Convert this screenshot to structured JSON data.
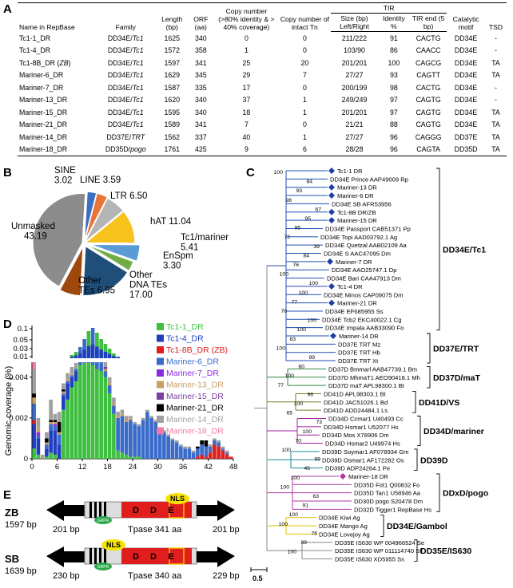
{
  "panels": {
    "a": "A",
    "b": "B",
    "c": "C",
    "d": "D",
    "e": "E"
  },
  "table": {
    "headers": {
      "name": "Name in RepBase",
      "family": "Family",
      "length": "Length (bp)",
      "orf": "ORF (aa)",
      "copy80": "Copy number (>80% identity & > 40% coverage)",
      "intact": "Copy number of intact Tn",
      "tir": "TIR",
      "size": "Size (bp) Left/Right",
      "identity": "Identity %",
      "tirend": "TIR end (5 bp)",
      "motif": "Catalytic motif",
      "tsd": "TSD"
    },
    "rows": [
      {
        "name": "Tc1-1_DR",
        "family": "DD34E/Tc1",
        "length": "1625",
        "orf": "340",
        "copy": "0",
        "intact": "0",
        "size": "211/222",
        "identity": "91",
        "end": "CACTG",
        "motif": "DD34E",
        "tsd": "-"
      },
      {
        "name": "Tc1-4_DR",
        "family": "DD34E/Tc1",
        "length": "1572",
        "orf": "358",
        "copy": "1",
        "intact": "0",
        "size": "103/90",
        "identity": "86",
        "end": "CAACC",
        "motif": "DD34E",
        "tsd": "-"
      },
      {
        "name": "Tc1-8B_DR (ZB)",
        "family": "DD34E/Tc1",
        "length": "1597",
        "orf": "341",
        "copy": "25",
        "intact": "20",
        "size": "201/201",
        "identity": "100",
        "end": "CAGCG",
        "motif": "DD34E",
        "tsd": "TA"
      },
      {
        "name": "Mariner-6_DR",
        "family": "DD34E/Tc1",
        "length": "1629",
        "orf": "345",
        "copy": "29",
        "intact": "7",
        "size": "27/27",
        "identity": "93",
        "end": "CAGTT",
        "motif": "DD34E",
        "tsd": "TA"
      },
      {
        "name": "Mariner-7_DR",
        "family": "DD34E/Tc1",
        "length": "1587",
        "orf": "335",
        "copy": "17",
        "intact": "0",
        "size": "200/199",
        "identity": "98",
        "end": "CACTG",
        "motif": "DD34E",
        "tsd": "-"
      },
      {
        "name": "Mariner-13_DR",
        "family": "DD34E/Tc1",
        "length": "1620",
        "orf": "340",
        "copy": "37",
        "intact": "1",
        "size": "249/249",
        "identity": "97",
        "end": "CAGTG",
        "motif": "DD34E",
        "tsd": "-"
      },
      {
        "name": "Mariner-15_DR",
        "family": "DD34E/Tc1",
        "length": "1595",
        "orf": "340",
        "copy": "18",
        "intact": "1",
        "size": "201/201",
        "identity": "97",
        "end": "CAGTG",
        "motif": "DD34E",
        "tsd": "TA"
      },
      {
        "name": "Mariner-21_DR",
        "family": "DD34E/Tc1",
        "length": "1589",
        "orf": "341",
        "copy": "7",
        "intact": "0",
        "size": "21/21",
        "identity": "88",
        "end": "CAGTG",
        "motif": "DD34E",
        "tsd": "TA"
      },
      {
        "name": "Mariner-14_DR",
        "family": "DD37E/TRT",
        "length": "1562",
        "orf": "337",
        "copy": "40",
        "intact": "1",
        "size": "27/27",
        "identity": "96",
        "end": "CAGGG",
        "motif": "DD37E",
        "tsd": "TA"
      },
      {
        "name": "Mariner-18_DR",
        "family": "DD35D/pogo",
        "length": "1761",
        "orf": "425",
        "copy": "9",
        "intact": "6",
        "size": "28/28",
        "identity": "96",
        "end": "CAGTA",
        "motif": "DD35D",
        "tsd": "TA"
      }
    ]
  },
  "chart_data": [
    {
      "type": "pie",
      "labels": [
        "SINE",
        "LINE",
        "LTR",
        "hAT",
        "Tc1/mariner",
        "EnSpm",
        "Other DNA TEs",
        "Other TEs",
        "Unmasked"
      ],
      "values": [
        3.02,
        3.59,
        6.5,
        11.04,
        5.41,
        3.3,
        17.0,
        6.95,
        43.19
      ],
      "label_text": [
        "SINE\n3.02",
        "LINE 3.59",
        "LTR 6.50",
        "hAT 11.04",
        "Tc1/mariner\n5.41",
        "EnSpm\n3.30",
        "Other\nDNA TEs\n17.00",
        "Other\nTEs 6.95",
        "Unmasked\n43.19"
      ],
      "colors": [
        "#3b6fc4",
        "#e8743b",
        "#b5b5b5",
        "#f7c21b",
        "#5b9bd5",
        "#70ad47",
        "#1f4e79",
        "#9e480e",
        "#8c8c8c"
      ]
    },
    {
      "type": "bar",
      "ylabel": "Genomic coverage (%)",
      "x_ticks": [
        "0",
        "6",
        "12",
        "18",
        "24",
        "30",
        "36",
        "42",
        "48"
      ],
      "upper_y_ticks": [
        "0.1",
        "0.05",
        "0.03",
        "0.01"
      ],
      "lower_y_ticks": [
        "0.004",
        "0.002",
        "0"
      ],
      "series": [
        {
          "name": "Tc1-1_DR",
          "color": "#3fbf3f"
        },
        {
          "name": "Tc1-4_DR",
          "color": "#1f3fbf"
        },
        {
          "name": "Tc1-8B_DR (ZB)",
          "color": "#e01e1e"
        },
        {
          "name": "Mariner-6_DR",
          "color": "#3a6bc9"
        },
        {
          "name": "Mariner-7_DR",
          "color": "#8a2be2"
        },
        {
          "name": "Mariner-13_DR",
          "color": "#c8a060"
        },
        {
          "name": "Mariner-15_DR",
          "color": "#7a3fa0"
        },
        {
          "name": "Mariner-21_DR",
          "color": "#000000"
        },
        {
          "name": "Mariner-14_DR",
          "color": "#a0a0a0"
        },
        {
          "name": "Mariner-18_DR",
          "color": "#f07aa8"
        }
      ],
      "x": [
        1,
        2,
        3,
        4,
        5,
        6,
        7,
        8,
        9,
        10,
        11,
        12,
        13,
        14,
        15,
        16,
        17,
        18,
        19,
        20,
        21,
        22,
        23,
        24,
        25,
        26,
        27,
        28,
        29,
        30,
        31,
        32,
        33,
        34,
        35,
        36,
        37,
        38,
        39,
        40,
        41,
        42,
        43,
        44,
        45,
        46,
        47,
        48
      ],
      "stack_values": [
        [
          0.0005,
          0.0012,
          0.0002,
          0.0008,
          0,
          0.0003,
          0,
          0.0002,
          0.0012,
          0.0006
        ],
        [
          0.0002,
          0.0008,
          0,
          0.0001,
          0.0002,
          0.0002,
          0,
          0,
          0.0005,
          0
        ],
        [
          0,
          0,
          0,
          0,
          0,
          0,
          0,
          0,
          0.0002,
          0
        ],
        [
          0.0001,
          0.0004,
          0,
          0.0002,
          0,
          0.0001,
          0,
          0.0002,
          0.0003,
          0
        ],
        [
          0.0003,
          0.0011,
          0,
          0.0003,
          0,
          0.0001,
          0,
          0.0001,
          0.001,
          0
        ],
        [
          0.0002,
          0.0012,
          0,
          0.0002,
          0.0001,
          0.0001,
          0,
          0.0001,
          0.0003,
          0
        ],
        [
          0,
          0.0007,
          0,
          0.0005,
          0,
          0.0001,
          0,
          0.0005,
          0.0005,
          0
        ],
        [
          0.0024,
          0.0007,
          0,
          0.0001,
          0,
          0.0001,
          0,
          0.0001,
          0.0003,
          0
        ],
        [
          0.0029,
          0.0008,
          0,
          0.0001,
          0,
          0.0001,
          0,
          0,
          0.0003,
          0
        ],
        [
          0.0035,
          0.0005,
          0,
          0.0001,
          0,
          0.0001,
          0,
          0,
          0.0003,
          0
        ],
        [
          0.0038,
          0.0005,
          0,
          0.0001,
          0,
          0,
          0,
          0,
          0.0003,
          0
        ],
        [
          0.0046,
          0,
          0,
          0.0003,
          0.0004,
          0.0003,
          0.0003,
          0,
          0.0002,
          0
        ],
        [
          0.0047,
          0,
          0,
          0.0008,
          0.0004,
          0.0003,
          0.0005,
          0,
          0.0004,
          0
        ],
        [
          0.0047,
          0,
          0,
          0.0015,
          0.0006,
          0.0003,
          0.0007,
          0,
          0.0003,
          0
        ],
        [
          0.0046,
          0,
          0,
          0.0019,
          0.0006,
          0.0003,
          0.0008,
          0,
          0.0003,
          0
        ],
        [
          0.0044,
          0,
          0,
          0.0012,
          0.0004,
          0.0002,
          0.0007,
          0,
          0.0003,
          0
        ],
        [
          0.0043,
          0,
          0,
          0.0011,
          0.0002,
          0.0002,
          0.0005,
          0,
          0.0003,
          0
        ],
        [
          0.004,
          0,
          0,
          0.0003,
          0,
          0.0001,
          0.0001,
          0,
          0.0003,
          0
        ],
        [
          0.0032,
          0,
          0,
          0.0004,
          0,
          0.0001,
          0,
          0,
          0.0003,
          0
        ],
        [
          0.0022,
          0,
          0,
          0.0004,
          0,
          0.0001,
          0,
          0,
          0.0003,
          0
        ],
        [
          0.0004,
          0,
          0,
          0.0016,
          0,
          0.0001,
          0,
          0,
          0.0002,
          0
        ],
        [
          0.0003,
          0,
          0,
          0.0018,
          0,
          0.0001,
          0,
          0,
          0.0002,
          0
        ],
        [
          0.0002,
          0,
          0,
          0.0016,
          0,
          0.0001,
          0,
          0,
          0.0002,
          0
        ],
        [
          0.0001,
          0,
          0,
          0.0018,
          0,
          0.0001,
          0,
          0,
          0.0001,
          0
        ],
        [
          0.0001,
          0,
          0,
          0.0016,
          0,
          0,
          0,
          0,
          0.0001,
          0
        ],
        [
          0.0001,
          0,
          0,
          0.0015,
          0,
          0,
          0,
          0,
          0.0001,
          0
        ],
        [
          0,
          0,
          0,
          0.0019,
          0,
          0,
          0,
          0,
          0.0001,
          0
        ],
        [
          0,
          0,
          0,
          0.0023,
          0,
          0,
          0,
          0,
          0.0001,
          0
        ],
        [
          0,
          0,
          0,
          0.002,
          0,
          0,
          0,
          0,
          0.0001,
          0
        ],
        [
          0,
          0,
          0,
          0.0018,
          0,
          0,
          0,
          0,
          0.0001,
          0
        ],
        [
          0,
          0,
          0,
          0.0014,
          0,
          0,
          0,
          0,
          0.0001,
          0
        ],
        [
          0,
          0,
          0,
          0.0013,
          0,
          0,
          0,
          0,
          0.0001,
          0
        ],
        [
          0,
          0,
          0,
          0.0011,
          0,
          0,
          0,
          0,
          0.0001,
          0
        ],
        [
          0,
          0,
          0,
          0.0009,
          0,
          0,
          0,
          0,
          0.0001,
          0
        ],
        [
          0,
          0,
          0,
          0.0008,
          0,
          0,
          0,
          0,
          0.0001,
          0
        ],
        [
          0,
          0,
          0,
          0.0006,
          0,
          0,
          0,
          0,
          0.0001,
          0
        ],
        [
          0,
          0,
          0,
          0.0005,
          0,
          0,
          0,
          0,
          0.0001,
          0
        ],
        [
          0,
          0,
          0,
          0.0005,
          0,
          0,
          0,
          0,
          0.0001,
          0
        ],
        [
          0,
          0,
          0,
          0.0003,
          0,
          0,
          0,
          0,
          0.0001,
          0
        ],
        [
          0,
          0,
          0.0001,
          0.0004,
          0,
          0,
          0,
          0.0001,
          0,
          0
        ],
        [
          0,
          0,
          0.0002,
          0.0005,
          0,
          0,
          0,
          0.0002,
          0,
          0
        ],
        [
          0,
          0,
          0.0001,
          0.0005,
          0,
          0,
          0,
          0.0003,
          0,
          0
        ],
        [
          0,
          0,
          0.0003,
          0.0003,
          0,
          0,
          0,
          0,
          0.0001,
          0
        ],
        [
          0,
          0,
          0.0007,
          0.0002,
          0,
          0,
          0,
          0,
          0.0001,
          0
        ],
        [
          0,
          0,
          0.0006,
          0.0002,
          0,
          0,
          0,
          0,
          0.0001,
          0
        ],
        [
          0,
          0,
          0.0004,
          0.0001,
          0,
          0,
          0,
          0,
          0.0001,
          0
        ],
        [
          0,
          0,
          0.0002,
          0.0001,
          0,
          0,
          0,
          0,
          0.0001,
          0
        ],
        [
          0,
          0,
          0.0001,
          0,
          0,
          0,
          0,
          0,
          0,
          0
        ]
      ]
    }
  ],
  "tree": {
    "clades": [
      "DD34E/Tc1",
      "DD37E/TRT",
      "DD37D/maT",
      "DD41D/VS",
      "DD34D/mariner",
      "DD39D",
      "DDxD/pogo",
      "DD34E/Gambol",
      "DD35E/IS630"
    ],
    "scale": "0.5",
    "leaves": [
      {
        "t": "Tc1-1 DR",
        "c": "#1f3fa0",
        "d": true
      },
      {
        "t": "DD34E Prince AAP49009 Rp",
        "c": "#000"
      },
      {
        "t": "Mariner-13 DR",
        "c": "#1f3fa0",
        "d": true
      },
      {
        "t": "Mariner-6 DR",
        "c": "#1f3fa0",
        "d": true
      },
      {
        "t": "DD34E SB AFR53956",
        "c": "#000"
      },
      {
        "t": "Tc1-8B DR/ZB",
        "c": "#1f3fa0",
        "d": true
      },
      {
        "t": "Mariner-15 DR",
        "c": "#1f3fa0",
        "d": true
      },
      {
        "t": "DD34E Passport CAB51371 Pp",
        "c": "#000"
      },
      {
        "t": "DD34E Topi AAD03792.1 Ag",
        "c": "#000"
      },
      {
        "t": "DD34E Quetzal AAB02109 Aa",
        "c": "#000"
      },
      {
        "t": "DD34E S AAC47095 Dm",
        "c": "#000"
      },
      {
        "t": "Mariner-7 DR",
        "c": "#1f3fa0",
        "d": true
      },
      {
        "t": "DD34E AAO25747.1 Dp",
        "c": "#000"
      },
      {
        "t": "DD34E Bari CAA47913 Dm",
        "c": "#000"
      },
      {
        "t": "Tc1-4 DR",
        "c": "#1f3fa0",
        "d": true
      },
      {
        "t": "DD34E Minos CAP09075 Dm",
        "c": "#000"
      },
      {
        "t": "Mariner-21 DR",
        "c": "#1f3fa0",
        "d": true
      },
      {
        "t": "DD34E EF685955 Ss",
        "c": "#000"
      },
      {
        "t": "DD34E Tcb2 EKC40022.1 Cg",
        "c": "#000"
      },
      {
        "t": "DD34E Impala AAB33090 Fo",
        "c": "#000"
      },
      {
        "t": "Mariner-14 DR",
        "c": "#1f3fa0",
        "d": true
      },
      {
        "t": "DD37E TRT Mz",
        "c": "#000"
      },
      {
        "t": "DD37E TRT Hb",
        "c": "#000"
      },
      {
        "t": "DD37E TRT Xt",
        "c": "#000"
      },
      {
        "t": "DD37D Bmmarl AAB47739.1 Bm",
        "c": "#000"
      },
      {
        "t": "DD37D MhmaT1 AEO90418.1 Mh",
        "c": "#000"
      },
      {
        "t": "DD37D maT APL98300.1 Bt",
        "c": "#000"
      },
      {
        "t": "DD41D APL98303.1 Bt",
        "c": "#000"
      },
      {
        "t": "DD41D JAC51026.1 Bd",
        "c": "#000"
      },
      {
        "t": "DD41D ADD24484.1 Ls",
        "c": "#000"
      },
      {
        "t": "DD34D Ccmar1 U40493 Cc",
        "c": "#000"
      },
      {
        "t": "DD34D Hsmar1 U52077 Hs",
        "c": "#000"
      },
      {
        "t": "DD34D Mos X78906 Dm",
        "c": "#000"
      },
      {
        "t": "DD34D Hsmar2 U49974 Hs",
        "c": "#000"
      },
      {
        "t": "DD39D Soymar1 AF078934 Gm",
        "c": "#000"
      },
      {
        "t": "DD39D Osmar1 AF172282 Os",
        "c": "#000"
      },
      {
        "t": "DD39D ADP24264.1 Pe",
        "c": "#000"
      },
      {
        "t": "Mariner-18 DR",
        "c": "#b03aa0",
        "d": true
      },
      {
        "t": "DD35D Fot1 Q00832 Fo",
        "c": "#000"
      },
      {
        "t": "DD35D Tan1 U58946 Aa",
        "c": "#000"
      },
      {
        "t": "DD30D pogo S20478 Dm",
        "c": "#000"
      },
      {
        "t": "DD32D Tigger1 RepBase Hs",
        "c": "#000"
      },
      {
        "t": "DD34E Kiwi Ag",
        "c": "#000"
      },
      {
        "t": "DD34E Mango Ag",
        "c": "#000"
      },
      {
        "t": "DD34E Lovejoy Ag",
        "c": "#000"
      },
      {
        "t": "DD35E IS630 WP 004966524 Se",
        "c": "#000"
      },
      {
        "t": "DD35E IS630 WP 011114740 Sf",
        "c": "#000"
      },
      {
        "t": "DD35E IS630 XD5955 Ss",
        "c": "#000"
      }
    ],
    "support": [
      "100",
      "84",
      "93",
      "98",
      "67",
      "95",
      "95",
      "72",
      "39",
      "84",
      "76",
      "100",
      "100",
      "100",
      "77",
      "76",
      "100",
      "100",
      "83",
      "100",
      "99",
      "60",
      "100",
      "77",
      "96",
      "100",
      "65",
      "73",
      "100",
      "70",
      "100",
      "99",
      "45",
      "100",
      "100",
      "63",
      "91",
      "100",
      "100",
      "76",
      "99",
      "100"
    ]
  },
  "schematic": {
    "zb": {
      "name": "ZB",
      "length": "1597 bp",
      "left": "201 bp",
      "tpase": "Tpase 341 aa",
      "right": "201 bp",
      "nls": "NLS",
      "grpr": "GRPR",
      "d1": "D",
      "d2": "D",
      "e": "E"
    },
    "sb": {
      "name": "SB",
      "length": "1639 bp",
      "left": "230 bp",
      "tpase": "Tpase 340 aa",
      "right": "229 bp",
      "nls": "NLS",
      "grpr": "GRPR",
      "d1": "D",
      "d2": "D",
      "e": "E"
    }
  }
}
